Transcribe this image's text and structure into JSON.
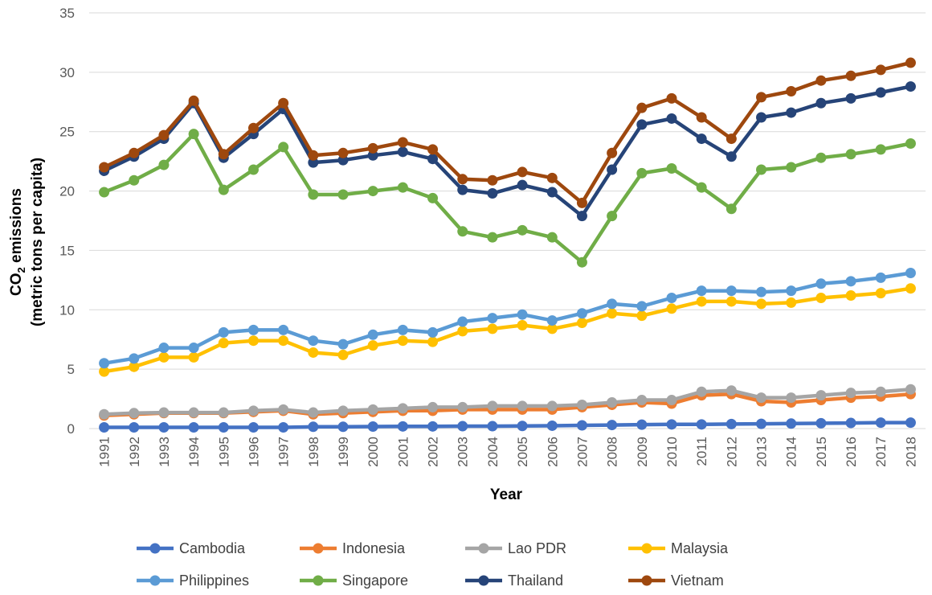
{
  "chart_data": {
    "type": "line",
    "title": "",
    "xlabel": "Year",
    "ylabel_line1_main": "CO",
    "ylabel_line1_sub": "2",
    "ylabel_line1_rest": " emissions",
    "ylabel_line2": "(metric tons per capita)",
    "ylim": [
      0,
      35
    ],
    "yticks": [
      "0",
      "5",
      "10",
      "15",
      "20",
      "25",
      "30",
      "35"
    ],
    "grid": true,
    "legend_position": "bottom",
    "categories": [
      "1991",
      "1992",
      "1993",
      "1994",
      "1995",
      "1996",
      "1997",
      "1998",
      "1999",
      "2000",
      "2001",
      "2002",
      "2003",
      "2004",
      "2005",
      "2006",
      "2007",
      "2008",
      "2009",
      "2010",
      "2011",
      "2012",
      "2013",
      "2014",
      "2015",
      "2016",
      "2017",
      "2018"
    ],
    "series": [
      {
        "name": "Cambodia",
        "color": "#4472C4",
        "values": [
          0.1,
          0.1,
          0.1,
          0.1,
          0.1,
          0.1,
          0.1,
          0.15,
          0.15,
          0.17,
          0.18,
          0.18,
          0.2,
          0.2,
          0.22,
          0.24,
          0.27,
          0.3,
          0.33,
          0.35,
          0.35,
          0.38,
          0.4,
          0.42,
          0.45,
          0.47,
          0.5,
          0.5
        ]
      },
      {
        "name": "Indonesia",
        "color": "#ED7D31",
        "values": [
          1.1,
          1.2,
          1.3,
          1.3,
          1.3,
          1.4,
          1.5,
          1.2,
          1.3,
          1.4,
          1.5,
          1.5,
          1.6,
          1.6,
          1.6,
          1.6,
          1.8,
          2.0,
          2.2,
          2.1,
          2.8,
          2.9,
          2.3,
          2.2,
          2.4,
          2.6,
          2.7,
          2.9
        ]
      },
      {
        "name": "Lao PDR",
        "color": "#A5A5A5",
        "values": [
          1.2,
          1.3,
          1.35,
          1.35,
          1.35,
          1.5,
          1.6,
          1.35,
          1.5,
          1.6,
          1.7,
          1.8,
          1.8,
          1.9,
          1.9,
          1.9,
          2.0,
          2.2,
          2.4,
          2.4,
          3.1,
          3.2,
          2.6,
          2.6,
          2.8,
          3.0,
          3.1,
          3.3
        ]
      },
      {
        "name": "Malaysia",
        "color": "#FFC000",
        "values": [
          4.8,
          5.2,
          6.0,
          6.0,
          7.2,
          7.4,
          7.4,
          6.4,
          6.2,
          7.0,
          7.4,
          7.3,
          8.2,
          8.4,
          8.7,
          8.4,
          8.9,
          9.7,
          9.5,
          10.1,
          10.7,
          10.7,
          10.5,
          10.6,
          11.0,
          11.2,
          11.4,
          11.8
        ]
      },
      {
        "name": "Philippines",
        "color": "#5B9BD5",
        "values": [
          5.5,
          5.9,
          6.8,
          6.8,
          8.1,
          8.3,
          8.3,
          7.4,
          7.1,
          7.9,
          8.3,
          8.1,
          9.0,
          9.3,
          9.6,
          9.1,
          9.7,
          10.5,
          10.3,
          11.0,
          11.6,
          11.6,
          11.5,
          11.6,
          12.2,
          12.4,
          12.7,
          13.1
        ]
      },
      {
        "name": "Singapore",
        "color": "#70AD47",
        "values": [
          19.9,
          20.9,
          22.2,
          24.8,
          20.1,
          21.8,
          23.7,
          19.7,
          19.7,
          20.0,
          20.3,
          19.4,
          16.6,
          16.1,
          16.7,
          16.1,
          14.0,
          17.9,
          21.5,
          21.9,
          20.3,
          18.5,
          21.8,
          22.0,
          22.8,
          23.1,
          23.5,
          24.0
        ]
      },
      {
        "name": "Thailand",
        "color": "#264478",
        "values": [
          21.7,
          22.9,
          24.4,
          27.4,
          22.8,
          24.8,
          26.9,
          22.4,
          22.6,
          23.0,
          23.3,
          22.7,
          20.1,
          19.8,
          20.5,
          19.9,
          17.9,
          21.8,
          25.6,
          26.1,
          24.4,
          22.9,
          26.2,
          26.6,
          27.4,
          27.8,
          28.3,
          28.8
        ]
      },
      {
        "name": "Vietnam",
        "color": "#9E480E",
        "values": [
          22.0,
          23.2,
          24.7,
          27.6,
          23.1,
          25.3,
          27.4,
          23.0,
          23.2,
          23.6,
          24.1,
          23.5,
          21.0,
          20.9,
          21.6,
          21.1,
          19.0,
          23.2,
          27.0,
          27.8,
          26.2,
          24.4,
          27.9,
          28.4,
          29.3,
          29.7,
          30.2,
          30.8
        ]
      }
    ]
  }
}
